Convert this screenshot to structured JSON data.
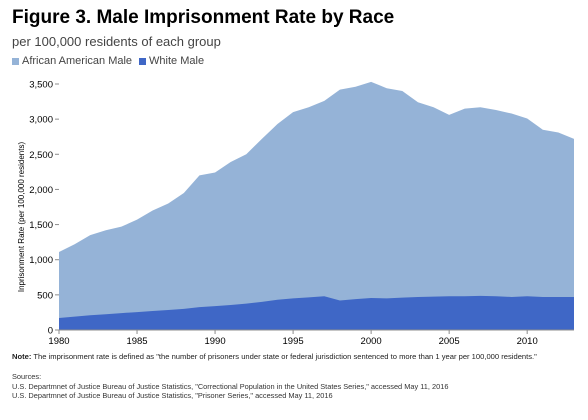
{
  "header": {
    "title": "Figure 3. Male Imprisonment Rate by Race",
    "subtitle": "per 100,000 residents of each group"
  },
  "colors": {
    "african_american": "#95b3d7",
    "white": "#3f67c6",
    "axis": "#8c8c8c",
    "tick_text": "#000000"
  },
  "chart_data": {
    "type": "area",
    "title": "Figure 3. Male Imprisonment Rate by Race",
    "subtitle": "per 100,000 residents of each group",
    "ylabel": "Inprisonment Rate (per 100,000 residents)",
    "xlabel": "",
    "xlim": [
      1980,
      2013
    ],
    "ylim": [
      0,
      3500
    ],
    "x_ticks": [
      1980,
      1985,
      1990,
      1995,
      2000,
      2005,
      2010
    ],
    "y_ticks": [
      0,
      500,
      1000,
      1500,
      2000,
      2500,
      3000,
      3500
    ],
    "y_tick_labels": [
      "0",
      "500",
      "1,000",
      "1,500",
      "2,000",
      "2,500",
      "3,000",
      "3,500"
    ],
    "grid": false,
    "legend_position": "top-left",
    "x": [
      1980,
      1981,
      1982,
      1983,
      1984,
      1985,
      1986,
      1987,
      1988,
      1989,
      1990,
      1991,
      1992,
      1993,
      1994,
      1995,
      1996,
      1997,
      1998,
      1999,
      2000,
      2001,
      2002,
      2003,
      2004,
      2005,
      2006,
      2007,
      2008,
      2009,
      2010,
      2011,
      2012,
      2013
    ],
    "series": [
      {
        "name": "African American Male",
        "color": "#95b3d7",
        "values": [
          1110,
          1220,
          1350,
          1420,
          1470,
          1570,
          1700,
          1800,
          1950,
          2200,
          2240,
          2390,
          2500,
          2720,
          2930,
          3100,
          3170,
          3260,
          3420,
          3460,
          3530,
          3440,
          3400,
          3240,
          3170,
          3060,
          3150,
          3170,
          3130,
          3080,
          3010,
          2850,
          2810,
          2720
        ]
      },
      {
        "name": "White Male",
        "color": "#3f67c6",
        "values": [
          170,
          190,
          210,
          225,
          240,
          255,
          270,
          285,
          300,
          325,
          340,
          355,
          375,
          400,
          430,
          450,
          465,
          480,
          420,
          440,
          455,
          450,
          460,
          470,
          475,
          480,
          480,
          485,
          480,
          470,
          480,
          470,
          470,
          470
        ]
      }
    ]
  },
  "notes": {
    "note_label": "Note:",
    "note_text": " The imprisonment rate is defined as \"the number of prisoners under state or federal jurisdiction sentenced to more than 1 year per 100,000 residents.\"",
    "sources_label": "Sources:",
    "source_1": "U.S. Departmnet of Justice Bureau of Justice Statistics, \"Correctional Population in the United States Series,\" accessed May 11, 2016",
    "source_2": "U.S. Departmnet of Justice Bureau of Justice Statistics, \"Prisoner Series,\" accessed May 11, 2016"
  }
}
